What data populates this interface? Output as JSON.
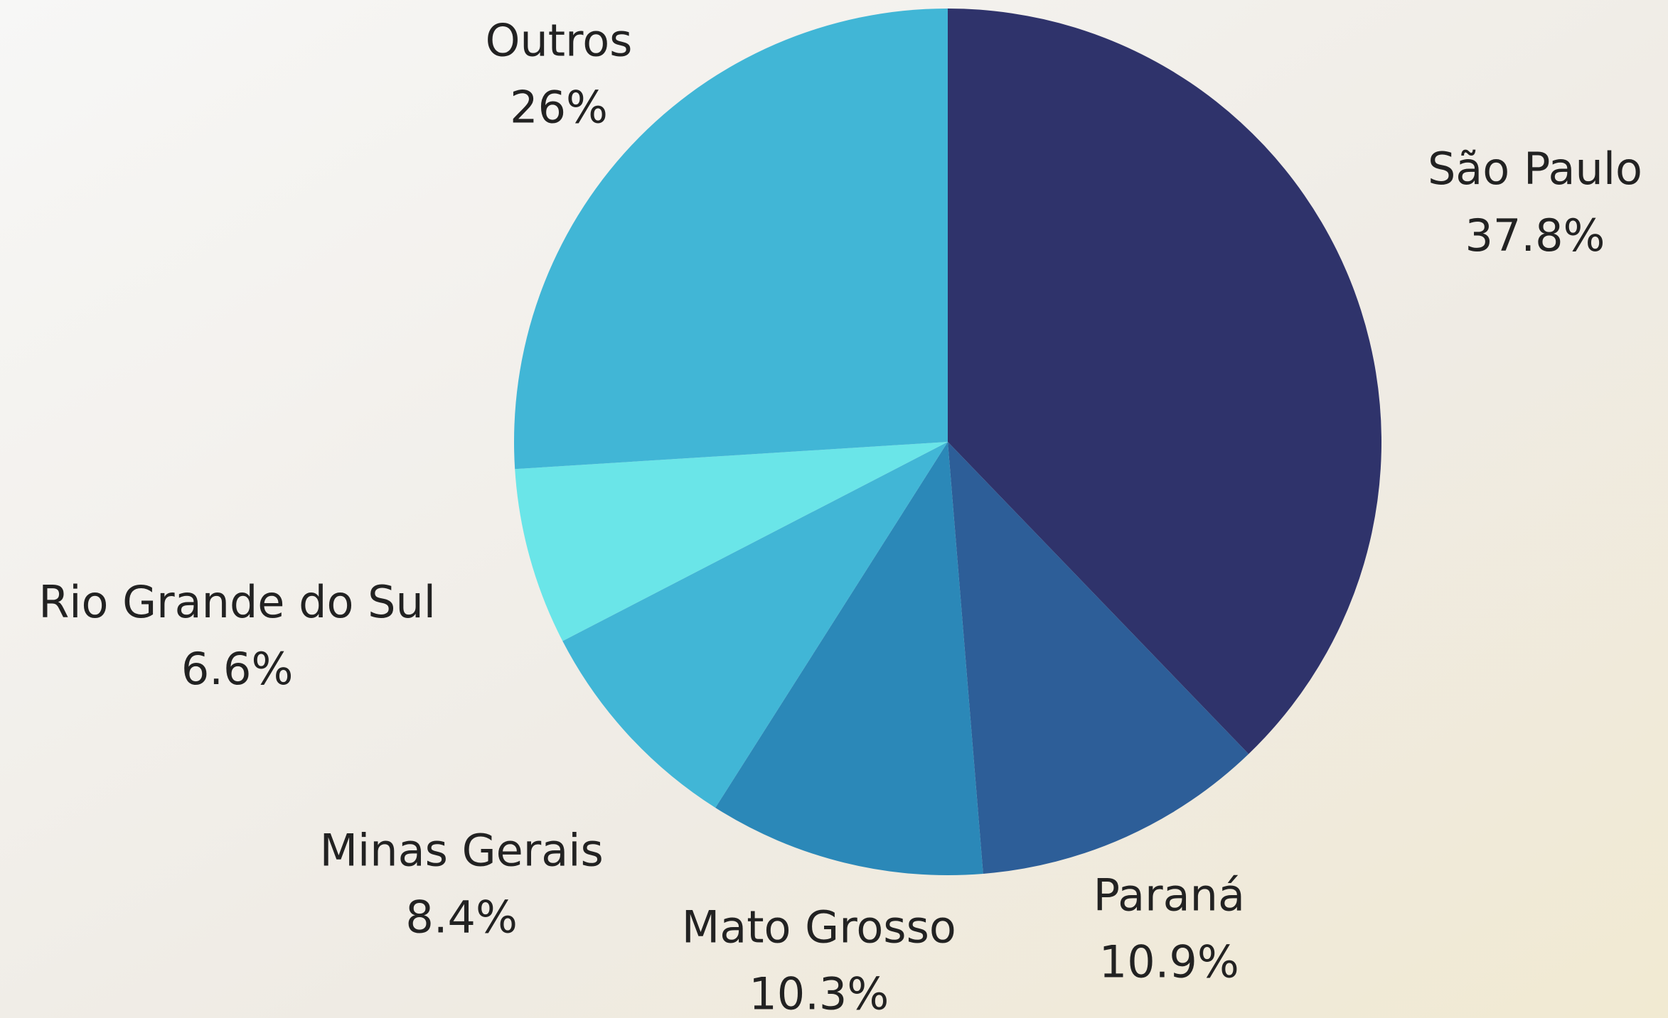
{
  "chart_data": {
    "type": "pie",
    "categories": [
      "São Paulo",
      "Paraná",
      "Mato Grosso",
      "Minas Gerais",
      "Rio Grande do Sul",
      "Outros"
    ],
    "values": [
      37.8,
      10.9,
      10.3,
      8.4,
      6.6,
      26
    ],
    "value_labels": [
      "37.8%",
      "10.9%",
      "10.3%",
      "8.4%",
      "6.6%",
      "26%"
    ],
    "colors": [
      "#2f336b",
      "#2d5e98",
      "#2b88b8",
      "#41b6d6",
      "#6ae5e8",
      "#41b6d6"
    ]
  }
}
